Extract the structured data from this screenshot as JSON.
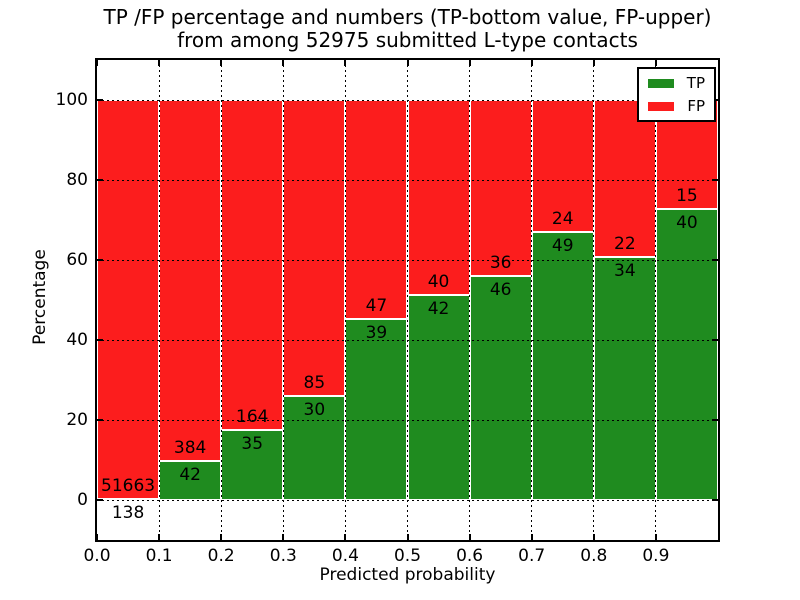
{
  "title": {
    "line1": "TP /FP percentage and numbers (TP-bottom value, FP-upper)",
    "line2": "from among 52975 submitted L-type contacts"
  },
  "axes": {
    "xlabel": "Predicted probability",
    "ylabel": "Percentage"
  },
  "legend": {
    "entries": [
      {
        "label": "TP",
        "color": "#1f8b1f"
      },
      {
        "label": "FP",
        "color": "#fc1d1d"
      }
    ]
  },
  "chart_data": {
    "type": "bar",
    "stacked": true,
    "normalized": "percent-of-bin",
    "title": "TP /FP percentage and numbers (TP-bottom value, FP-upper) from among 52975 submitted L-type contacts",
    "xlabel": "Predicted probability",
    "ylabel": "Percentage",
    "total_submitted": 52975,
    "bin_edges": [
      0.0,
      0.1,
      0.2,
      0.3,
      0.4,
      0.5,
      0.6,
      0.7,
      0.8,
      0.9,
      1.0
    ],
    "categories": [
      "0.0-0.1",
      "0.1-0.2",
      "0.2-0.3",
      "0.3-0.4",
      "0.4-0.5",
      "0.5-0.6",
      "0.6-0.7",
      "0.7-0.8",
      "0.8-0.9",
      "0.9-1.0"
    ],
    "series": [
      {
        "name": "TP",
        "color": "#1f8b1f",
        "counts": [
          138,
          42,
          35,
          30,
          39,
          42,
          46,
          49,
          34,
          40
        ]
      },
      {
        "name": "FP",
        "color": "#fc1d1d",
        "counts": [
          51663,
          384,
          164,
          85,
          47,
          40,
          36,
          24,
          22,
          15
        ]
      }
    ],
    "tp_percent_by_bin": [
      0.27,
      9.86,
      17.59,
      26.09,
      45.35,
      51.22,
      56.1,
      67.12,
      60.71,
      72.73
    ],
    "x_ticks": [
      "0.0",
      "0.1",
      "0.2",
      "0.3",
      "0.4",
      "0.5",
      "0.6",
      "0.7",
      "0.8",
      "0.9"
    ],
    "y_ticks": [
      0,
      20,
      40,
      60,
      80,
      100
    ],
    "xlim": [
      0.0,
      1.0
    ],
    "ylim": [
      -10,
      110
    ],
    "grid": "dotted",
    "legend_position": "upper right"
  }
}
